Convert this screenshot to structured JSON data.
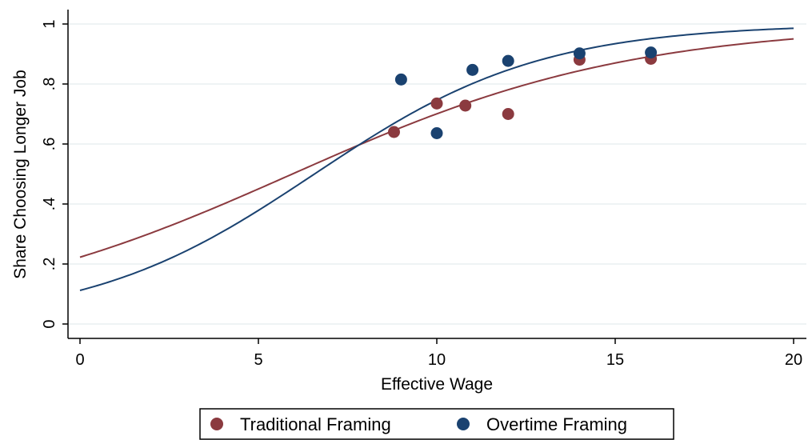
{
  "chart_data": {
    "type": "scatter",
    "xlabel": "Effective Wage",
    "ylabel": "Share Choosing Longer Job",
    "xlim": [
      0,
      20
    ],
    "ylim": [
      0,
      1
    ],
    "x_ticks": [
      0,
      5,
      10,
      15,
      20
    ],
    "x_tick_labels": [
      "0",
      "5",
      "10",
      "15",
      "20"
    ],
    "y_ticks": [
      0,
      0.2,
      0.4,
      0.6,
      0.8,
      1
    ],
    "y_tick_labels": [
      "0",
      ".2",
      ".4",
      ".6",
      ".8",
      "1"
    ],
    "grid": true,
    "legend_position": "bottom",
    "series": [
      {
        "name": "Traditional Framing",
        "color": "#8b3a3f",
        "points": [
          {
            "x": 8.8,
            "y": 0.64
          },
          {
            "x": 10.0,
            "y": 0.735
          },
          {
            "x": 10.8,
            "y": 0.728
          },
          {
            "x": 12.0,
            "y": 0.7
          },
          {
            "x": 14.0,
            "y": 0.881
          },
          {
            "x": 16.0,
            "y": 0.884
          }
        ],
        "fit_curve": {
          "type": "logistic",
          "intercept": -1.25,
          "slope": 0.21
        }
      },
      {
        "name": "Overtime Framing",
        "color": "#1a4270",
        "points": [
          {
            "x": 9.0,
            "y": 0.815
          },
          {
            "x": 10.0,
            "y": 0.636
          },
          {
            "x": 11.0,
            "y": 0.847
          },
          {
            "x": 12.0,
            "y": 0.877
          },
          {
            "x": 14.0,
            "y": 0.902
          },
          {
            "x": 16.0,
            "y": 0.905
          }
        ],
        "fit_curve": {
          "type": "logistic",
          "intercept": -2.07,
          "slope": 0.315
        }
      }
    ]
  }
}
